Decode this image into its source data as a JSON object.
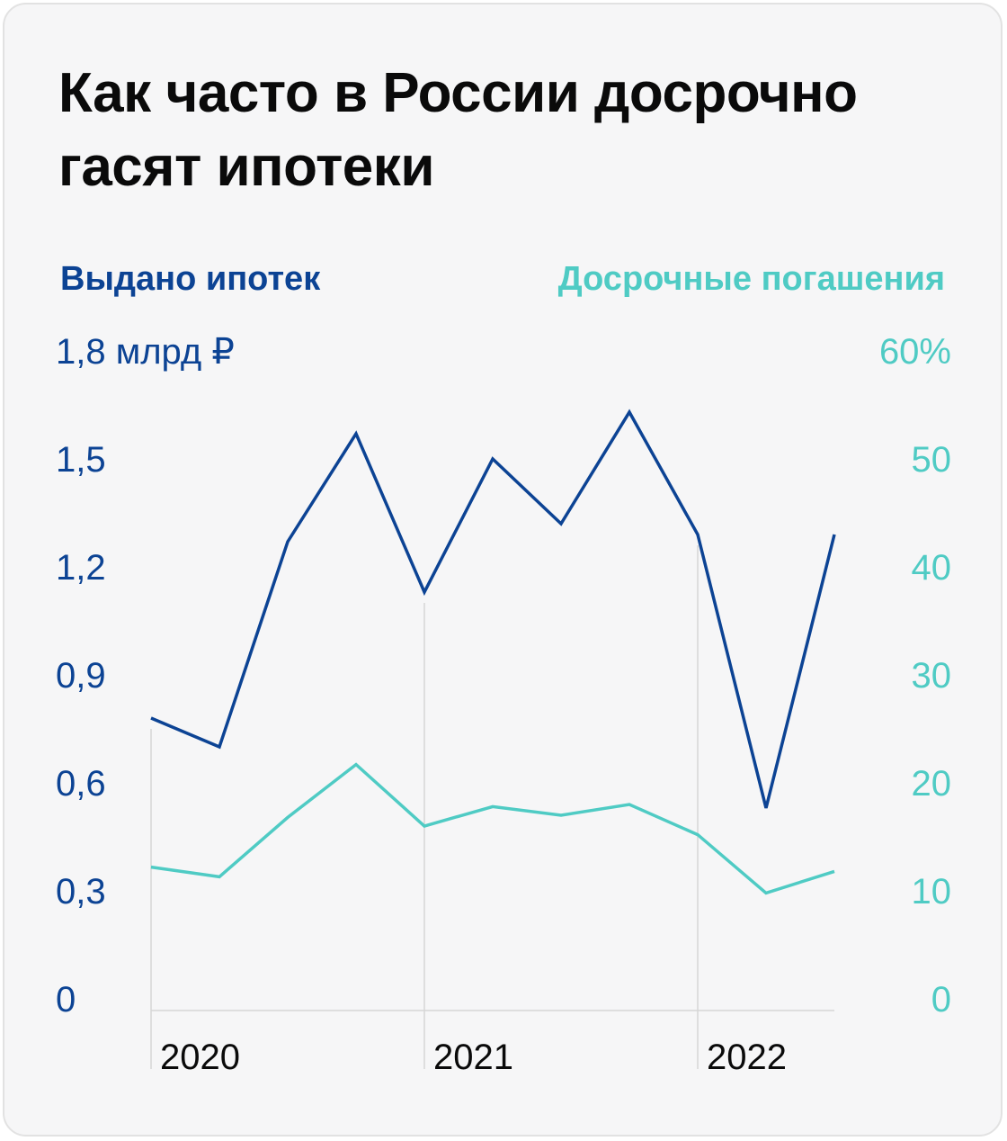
{
  "title": "Как часто в России досрочно гасят ипотеки",
  "chart_data": {
    "type": "line",
    "title": "Как часто в России досрочно гасят ипотеки",
    "x": [
      "2020 Q1",
      "2020 Q2",
      "2020 Q3",
      "2020 Q4",
      "2021 Q1",
      "2021 Q2",
      "2021 Q3",
      "2021 Q4",
      "2022 Q1",
      "2022 Q2",
      "2022 Q3"
    ],
    "x_tick_labels": [
      "2020",
      "2021",
      "2022"
    ],
    "series": [
      {
        "name": "Выдано ипотек",
        "axis": "left",
        "color": "#0c4394",
        "values": [
          0.78,
          0.7,
          1.27,
          1.57,
          1.13,
          1.5,
          1.32,
          1.63,
          1.29,
          0.53,
          1.29
        ]
      },
      {
        "name": "Досрочные погашения",
        "axis": "right",
        "color": "#4fcbc4",
        "values": [
          12.2,
          11.3,
          16.8,
          21.7,
          16.0,
          17.8,
          17.0,
          18.0,
          15.2,
          9.8,
          11.8
        ]
      }
    ],
    "y_left": {
      "ylim": [
        0,
        1.8
      ],
      "ticks": [
        0,
        0.3,
        0.6,
        0.9,
        1.2,
        1.5,
        1.8
      ],
      "tick_labels": [
        "0",
        "0,3",
        "0,6",
        "0,9",
        "1,2",
        "1,5",
        "1,8 млрд ₽"
      ],
      "color": "#0c4394"
    },
    "y_right": {
      "ylim": [
        0,
        60
      ],
      "ticks": [
        0,
        10,
        20,
        30,
        40,
        50,
        60
      ],
      "tick_labels": [
        "0",
        "10",
        "20",
        "30",
        "40",
        "50",
        "60%"
      ],
      "color": "#4fcbc4"
    },
    "grid": false,
    "legend": "top"
  }
}
